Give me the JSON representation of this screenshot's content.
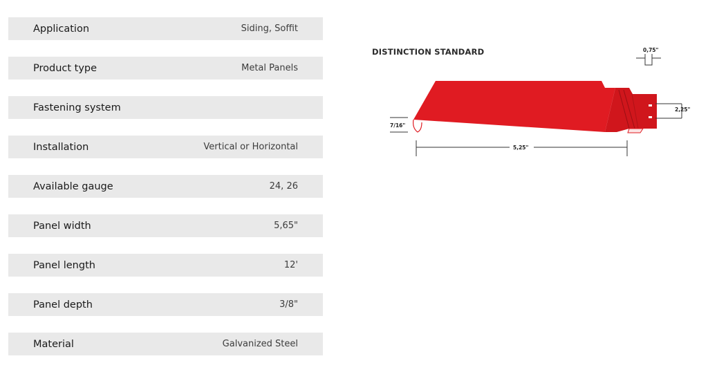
{
  "specs": [
    {
      "label": "Application",
      "value": "Siding, Soffit"
    },
    {
      "label": "Product type",
      "value": "Metal Panels"
    },
    {
      "label": "Fastening system",
      "value": ""
    },
    {
      "label": "Installation",
      "value": "Vertical or Horizontal"
    },
    {
      "label": "Available gauge",
      "value": "24, 26"
    },
    {
      "label": "Panel width",
      "value": "5,65\""
    },
    {
      "label": "Panel length",
      "value": "12'"
    },
    {
      "label": "Panel depth",
      "value": "3/8\""
    },
    {
      "label": "Material",
      "value": "Galvanized Steel"
    }
  ],
  "diagram": {
    "title": "DISTINCTION STANDARD",
    "dim_rib": "0,75\"",
    "dim_lock": "2,25\"",
    "dim_depth": "7/16\"",
    "dim_width": "5,25\"",
    "panel_color": "#e01b22"
  }
}
